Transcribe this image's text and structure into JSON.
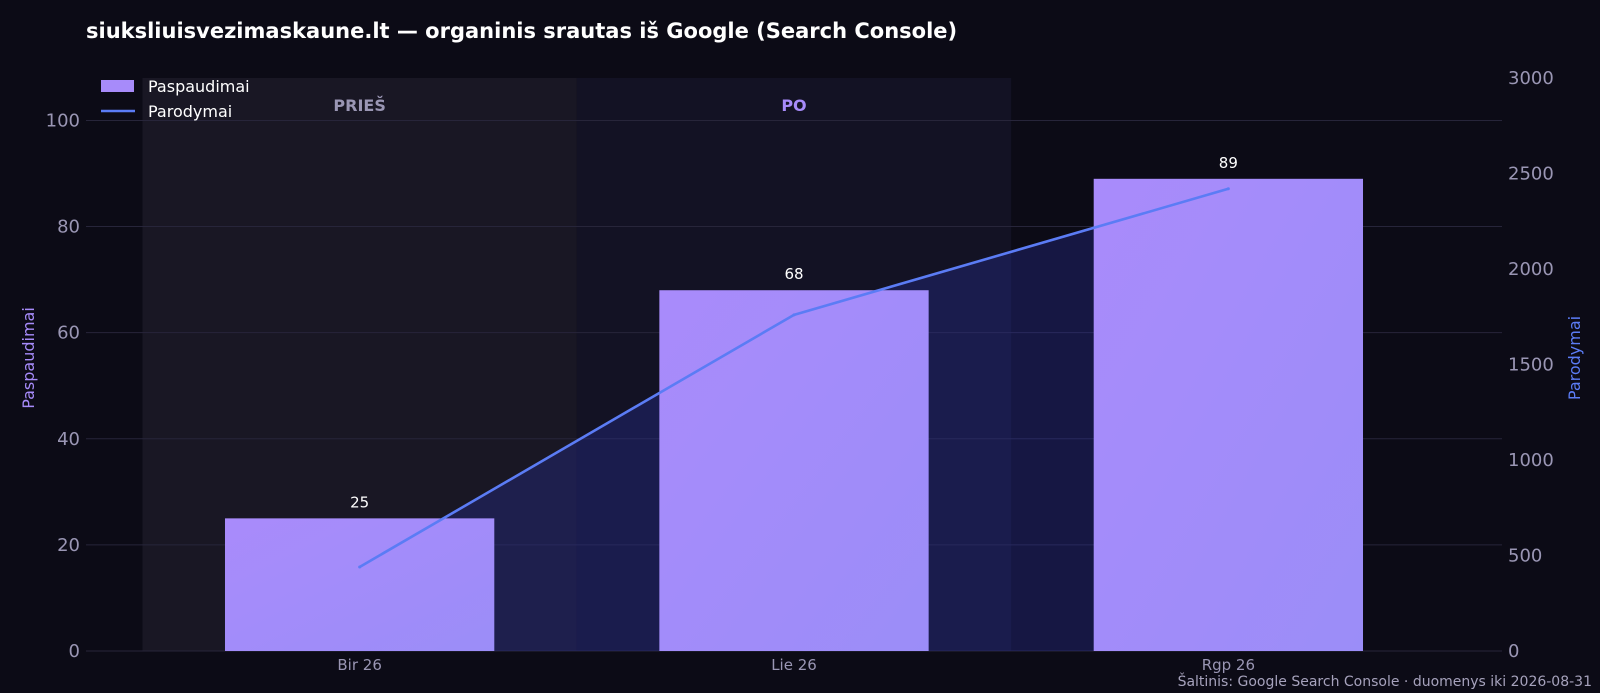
{
  "chart_data": {
    "type": "bar",
    "title": "siuksliuisvezimaskaune.lt — organinis srautas iš Google (Search Console)",
    "categories": [
      "Bir 26",
      "Lie 26",
      "Rgp 26"
    ],
    "series": [
      {
        "name": "Paspaudimai",
        "type": "bar",
        "axis": "left",
        "values": [
          25,
          68,
          89
        ],
        "color": "#a78bfa"
      },
      {
        "name": "Parodymai",
        "type": "line",
        "axis": "right",
        "values": [
          440,
          1760,
          2420
        ],
        "color": "#5b7cf5"
      }
    ],
    "ylabel": "Paspaudimai",
    "ylim": [
      0,
      108
    ],
    "yticks": [
      0,
      20,
      40,
      60,
      80,
      100
    ],
    "y2label": "Parodymai",
    "y2lim": [
      0,
      3000
    ],
    "y2ticks": [
      0,
      500,
      1000,
      1500,
      2000,
      2500,
      3000
    ],
    "regions": [
      {
        "label": "PRIEŠ",
        "from": -0.5,
        "to": 0.5,
        "color": "#9a96b4"
      },
      {
        "label": "PO",
        "from": 0.5,
        "to": 1.5,
        "color": "#a78bfa"
      }
    ],
    "legend_position": "top-left",
    "grid": true,
    "source": "Šaltinis: Google Search Console · duomenys iki 2026-08-31"
  }
}
